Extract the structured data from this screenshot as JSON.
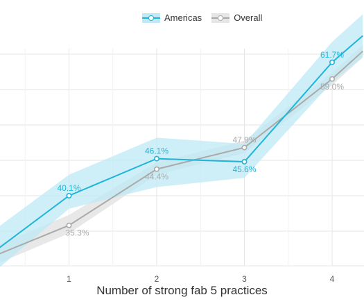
{
  "chart_data": {
    "type": "line",
    "xlabel": "Number of strong fab 5 practices",
    "ylabel": "",
    "x_ticks": [
      1,
      2,
      3,
      4
    ],
    "grid": true,
    "legend_position": "top-center",
    "series": [
      {
        "name": "Americas",
        "color": "#1fb4d8",
        "band_color": "#bfe9f6",
        "points": [
          {
            "x": 0,
            "y": 29.5,
            "label": ""
          },
          {
            "x": 1,
            "y": 40.1,
            "label": "40.1%"
          },
          {
            "x": 2,
            "y": 46.1,
            "label": "46.1%"
          },
          {
            "x": 3,
            "y": 45.6,
            "label": "45.6%"
          },
          {
            "x": 4,
            "y": 61.7,
            "label": "61.7%"
          },
          {
            "x": 4.35,
            "y": 66.0,
            "label": ""
          }
        ],
        "band": [
          [
            26.0,
            33.0
          ],
          [
            38.0,
            43.5
          ],
          [
            41.5,
            49.5
          ],
          [
            43.0,
            48.5
          ],
          [
            58.5,
            65.0
          ],
          [
            62.5,
            69.5
          ]
        ]
      },
      {
        "name": "Overall",
        "color": "#aaaaaa",
        "band_color": "#e6e6e6",
        "points": [
          {
            "x": 0,
            "y": 29.5,
            "label": ""
          },
          {
            "x": 1,
            "y": 35.3,
            "label": "35.3%"
          },
          {
            "x": 2,
            "y": 44.4,
            "label": "44.4%"
          },
          {
            "x": 3,
            "y": 47.9,
            "label": "47.9%"
          },
          {
            "x": 4,
            "y": 59.0,
            "label": "59.0%"
          },
          {
            "x": 4.35,
            "y": 63.5,
            "label": ""
          }
        ],
        "band": [
          [
            28.0,
            31.0
          ],
          [
            34.0,
            37.0
          ],
          [
            43.5,
            45.5
          ],
          [
            47.0,
            49.0
          ],
          [
            58.0,
            60.0
          ],
          [
            62.5,
            64.5
          ]
        ]
      }
    ]
  }
}
